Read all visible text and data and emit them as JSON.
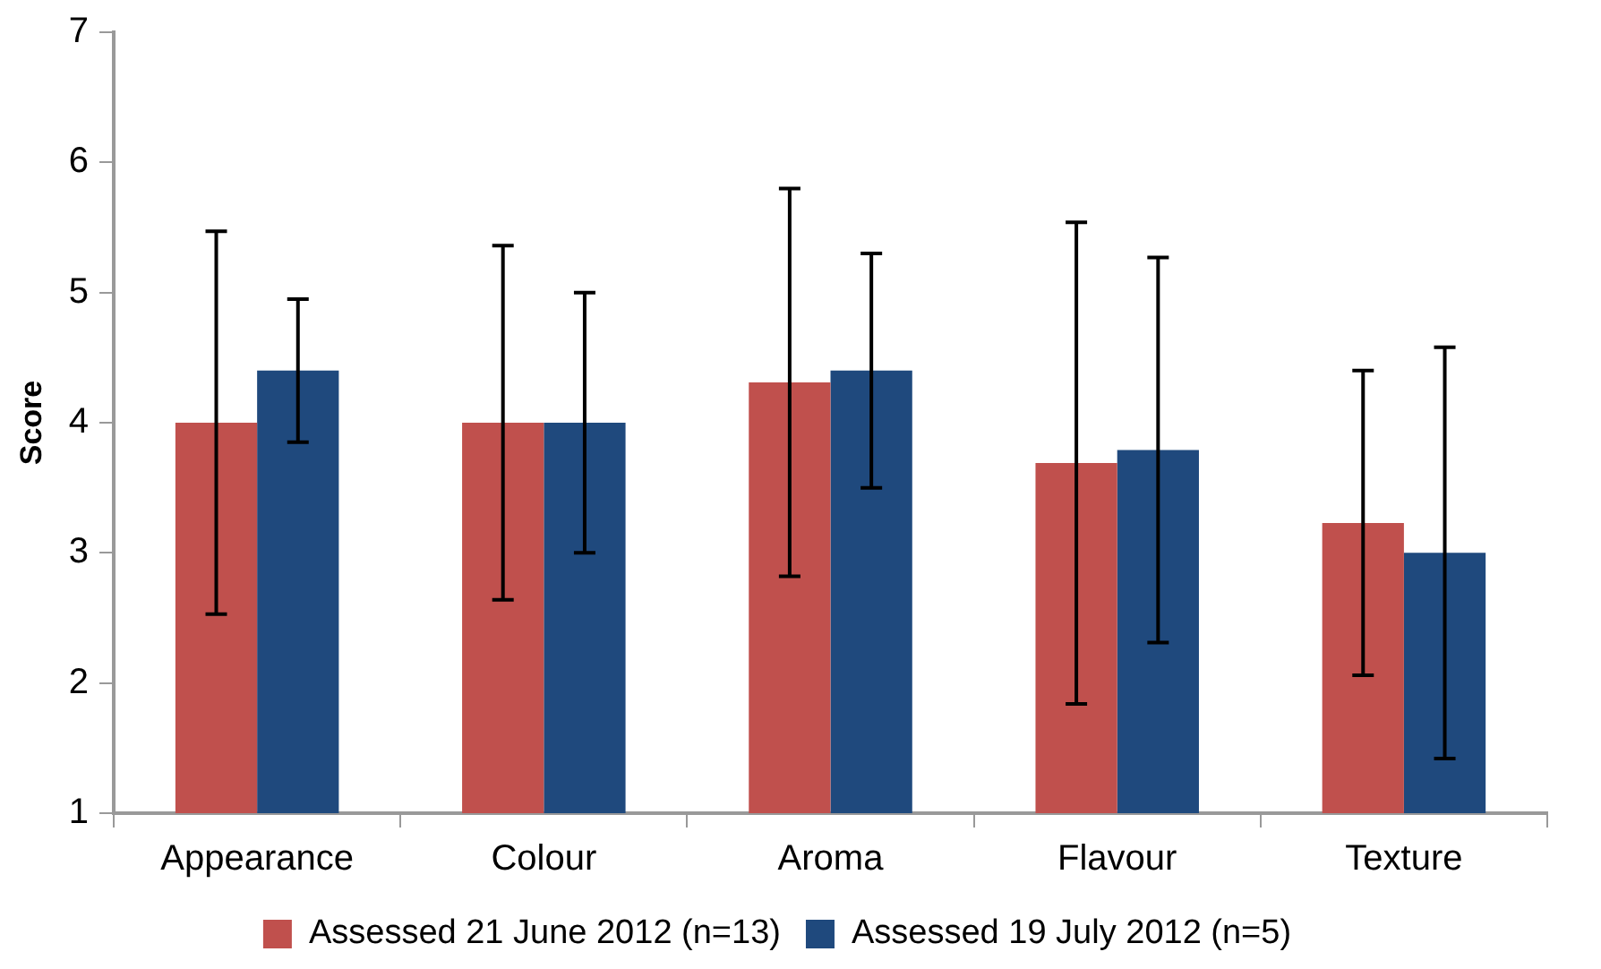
{
  "chart_data": {
    "type": "bar",
    "ylabel": "Score",
    "categories": [
      "Appearance",
      "Colour",
      "Aroma",
      "Flavour",
      "Texture"
    ],
    "series": [
      {
        "name": "Assessed 21 June 2012 (n=13)",
        "color": "#c0504d",
        "values": [
          4.0,
          4.0,
          4.31,
          3.69,
          3.23
        ],
        "errors": [
          1.47,
          1.36,
          1.49,
          1.85,
          1.17
        ]
      },
      {
        "name": "Assessed 19 July 2012 (n=5)",
        "color": "#1f497d",
        "values": [
          4.4,
          4.0,
          4.4,
          3.79,
          3.0
        ],
        "errors": [
          0.55,
          1.0,
          0.9,
          1.48,
          1.58
        ]
      }
    ],
    "ylim": [
      1,
      7
    ],
    "yticks": [
      1,
      2,
      3,
      4,
      5,
      6,
      7
    ],
    "grid": false,
    "legend": "bottom"
  }
}
